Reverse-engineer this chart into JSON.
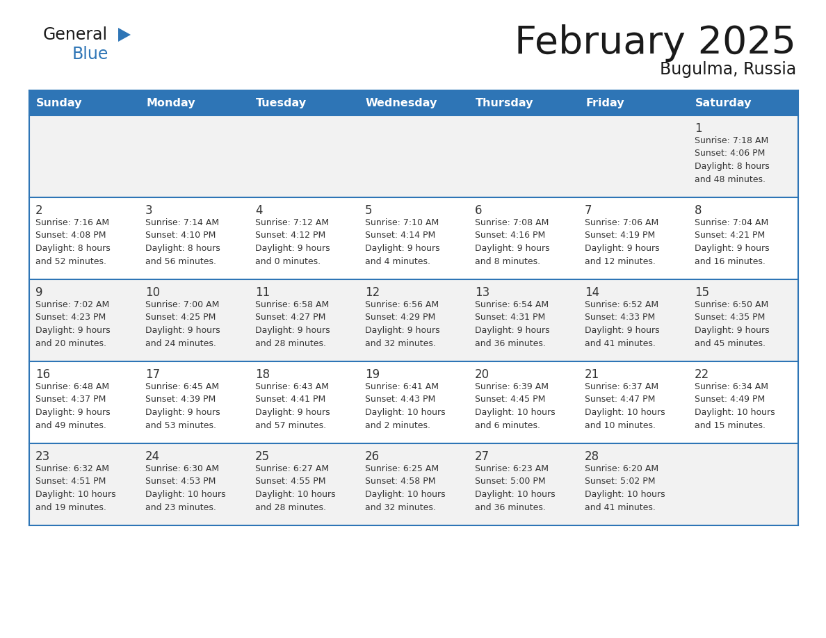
{
  "title": "February 2025",
  "subtitle": "Bugulma, Russia",
  "header_color": "#2E75B6",
  "header_text_color": "#FFFFFF",
  "cell_bg_row0": "#F2F2F2",
  "cell_bg_row1": "#FFFFFF",
  "cell_bg_row2": "#F2F2F2",
  "cell_bg_row3": "#FFFFFF",
  "cell_bg_row4": "#F2F2F2",
  "border_color": "#2E75B6",
  "text_color": "#333333",
  "days_of_week": [
    "Sunday",
    "Monday",
    "Tuesday",
    "Wednesday",
    "Thursday",
    "Friday",
    "Saturday"
  ],
  "calendar_data": [
    [
      {
        "day": "",
        "info": ""
      },
      {
        "day": "",
        "info": ""
      },
      {
        "day": "",
        "info": ""
      },
      {
        "day": "",
        "info": ""
      },
      {
        "day": "",
        "info": ""
      },
      {
        "day": "",
        "info": ""
      },
      {
        "day": "1",
        "info": "Sunrise: 7:18 AM\nSunset: 4:06 PM\nDaylight: 8 hours\nand 48 minutes."
      }
    ],
    [
      {
        "day": "2",
        "info": "Sunrise: 7:16 AM\nSunset: 4:08 PM\nDaylight: 8 hours\nand 52 minutes."
      },
      {
        "day": "3",
        "info": "Sunrise: 7:14 AM\nSunset: 4:10 PM\nDaylight: 8 hours\nand 56 minutes."
      },
      {
        "day": "4",
        "info": "Sunrise: 7:12 AM\nSunset: 4:12 PM\nDaylight: 9 hours\nand 0 minutes."
      },
      {
        "day": "5",
        "info": "Sunrise: 7:10 AM\nSunset: 4:14 PM\nDaylight: 9 hours\nand 4 minutes."
      },
      {
        "day": "6",
        "info": "Sunrise: 7:08 AM\nSunset: 4:16 PM\nDaylight: 9 hours\nand 8 minutes."
      },
      {
        "day": "7",
        "info": "Sunrise: 7:06 AM\nSunset: 4:19 PM\nDaylight: 9 hours\nand 12 minutes."
      },
      {
        "day": "8",
        "info": "Sunrise: 7:04 AM\nSunset: 4:21 PM\nDaylight: 9 hours\nand 16 minutes."
      }
    ],
    [
      {
        "day": "9",
        "info": "Sunrise: 7:02 AM\nSunset: 4:23 PM\nDaylight: 9 hours\nand 20 minutes."
      },
      {
        "day": "10",
        "info": "Sunrise: 7:00 AM\nSunset: 4:25 PM\nDaylight: 9 hours\nand 24 minutes."
      },
      {
        "day": "11",
        "info": "Sunrise: 6:58 AM\nSunset: 4:27 PM\nDaylight: 9 hours\nand 28 minutes."
      },
      {
        "day": "12",
        "info": "Sunrise: 6:56 AM\nSunset: 4:29 PM\nDaylight: 9 hours\nand 32 minutes."
      },
      {
        "day": "13",
        "info": "Sunrise: 6:54 AM\nSunset: 4:31 PM\nDaylight: 9 hours\nand 36 minutes."
      },
      {
        "day": "14",
        "info": "Sunrise: 6:52 AM\nSunset: 4:33 PM\nDaylight: 9 hours\nand 41 minutes."
      },
      {
        "day": "15",
        "info": "Sunrise: 6:50 AM\nSunset: 4:35 PM\nDaylight: 9 hours\nand 45 minutes."
      }
    ],
    [
      {
        "day": "16",
        "info": "Sunrise: 6:48 AM\nSunset: 4:37 PM\nDaylight: 9 hours\nand 49 minutes."
      },
      {
        "day": "17",
        "info": "Sunrise: 6:45 AM\nSunset: 4:39 PM\nDaylight: 9 hours\nand 53 minutes."
      },
      {
        "day": "18",
        "info": "Sunrise: 6:43 AM\nSunset: 4:41 PM\nDaylight: 9 hours\nand 57 minutes."
      },
      {
        "day": "19",
        "info": "Sunrise: 6:41 AM\nSunset: 4:43 PM\nDaylight: 10 hours\nand 2 minutes."
      },
      {
        "day": "20",
        "info": "Sunrise: 6:39 AM\nSunset: 4:45 PM\nDaylight: 10 hours\nand 6 minutes."
      },
      {
        "day": "21",
        "info": "Sunrise: 6:37 AM\nSunset: 4:47 PM\nDaylight: 10 hours\nand 10 minutes."
      },
      {
        "day": "22",
        "info": "Sunrise: 6:34 AM\nSunset: 4:49 PM\nDaylight: 10 hours\nand 15 minutes."
      }
    ],
    [
      {
        "day": "23",
        "info": "Sunrise: 6:32 AM\nSunset: 4:51 PM\nDaylight: 10 hours\nand 19 minutes."
      },
      {
        "day": "24",
        "info": "Sunrise: 6:30 AM\nSunset: 4:53 PM\nDaylight: 10 hours\nand 23 minutes."
      },
      {
        "day": "25",
        "info": "Sunrise: 6:27 AM\nSunset: 4:55 PM\nDaylight: 10 hours\nand 28 minutes."
      },
      {
        "day": "26",
        "info": "Sunrise: 6:25 AM\nSunset: 4:58 PM\nDaylight: 10 hours\nand 32 minutes."
      },
      {
        "day": "27",
        "info": "Sunrise: 6:23 AM\nSunset: 5:00 PM\nDaylight: 10 hours\nand 36 minutes."
      },
      {
        "day": "28",
        "info": "Sunrise: 6:20 AM\nSunset: 5:02 PM\nDaylight: 10 hours\nand 41 minutes."
      },
      {
        "day": "",
        "info": ""
      }
    ]
  ],
  "fig_width": 11.88,
  "fig_height": 9.18,
  "dpi": 100
}
